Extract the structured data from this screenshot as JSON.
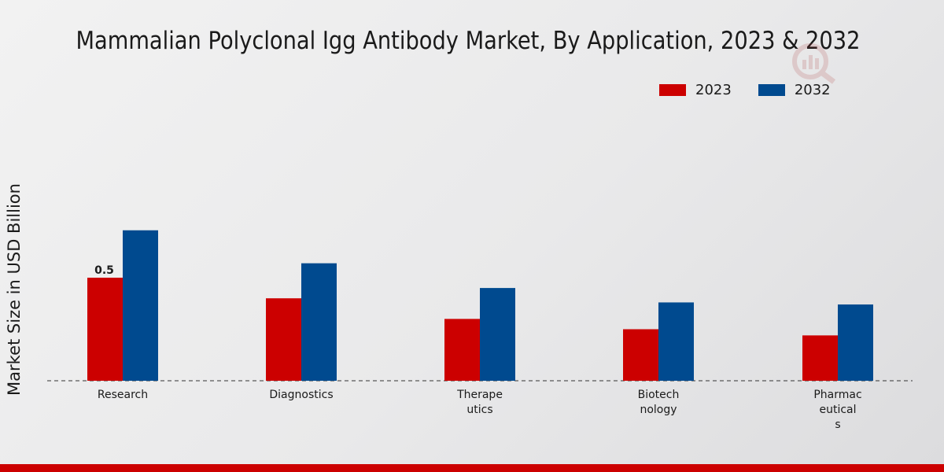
{
  "colors": {
    "series_2023": "#cc0000",
    "series_2032": "#004a8f",
    "baseline": "#333333"
  },
  "chart_data": {
    "type": "bar",
    "title": "Mammalian Polyclonal Igg Antibody Market, By Application, 2023 & 2032",
    "xlabel": "",
    "ylabel": "Market Size in USD Billion",
    "categories": [
      "Research",
      "Diagnostics",
      "Therape\nutics",
      "Biotech\nnology",
      "Pharmac\neutical\ns"
    ],
    "series": [
      {
        "name": "2023",
        "values": [
          0.5,
          0.4,
          0.3,
          0.25,
          0.22
        ]
      },
      {
        "name": "2032",
        "values": [
          0.73,
          0.57,
          0.45,
          0.38,
          0.37
        ]
      }
    ],
    "data_labels": [
      {
        "series": "2023",
        "category_index": 0,
        "text": "0.5"
      }
    ],
    "ylim": [
      0,
      1.0
    ],
    "legend_position": "top-right",
    "grid": false
  }
}
